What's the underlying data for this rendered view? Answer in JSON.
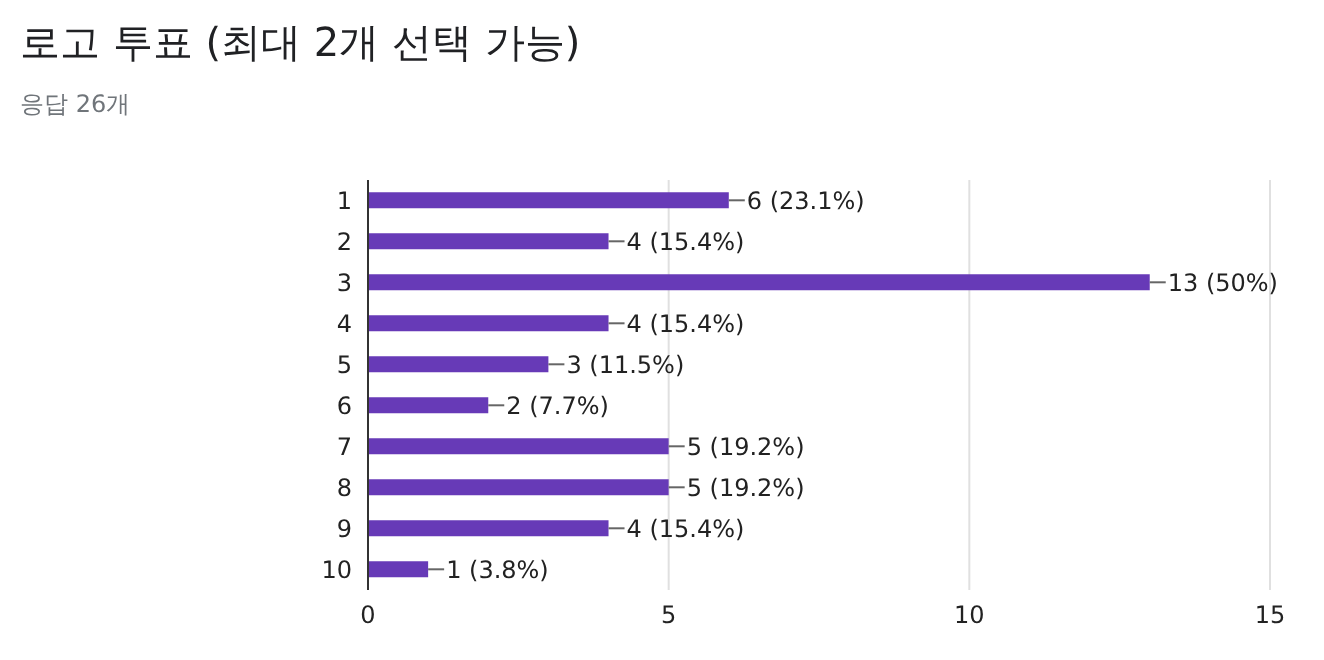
{
  "chart_data": {
    "type": "bar",
    "orientation": "horizontal",
    "title": "로고 투표 (최대 2개 선택 가능)",
    "subtitle": "응답 26개",
    "categories": [
      "1",
      "2",
      "3",
      "4",
      "5",
      "6",
      "7",
      "8",
      "9",
      "10"
    ],
    "values": [
      6,
      4,
      13,
      4,
      3,
      2,
      5,
      5,
      4,
      1
    ],
    "value_labels": [
      "6 (23.1%)",
      "4 (15.4%)",
      "13 (50%)",
      "4 (15.4%)",
      "3 (11.5%)",
      "2 (7.7%)",
      "5 (19.2%)",
      "5 (19.2%)",
      "4 (15.4%)",
      "1 (3.8%)"
    ],
    "color": "#673ab7",
    "xlim": [
      0,
      15
    ],
    "xticks": [
      0,
      5,
      10,
      15
    ],
    "grid": "x"
  }
}
